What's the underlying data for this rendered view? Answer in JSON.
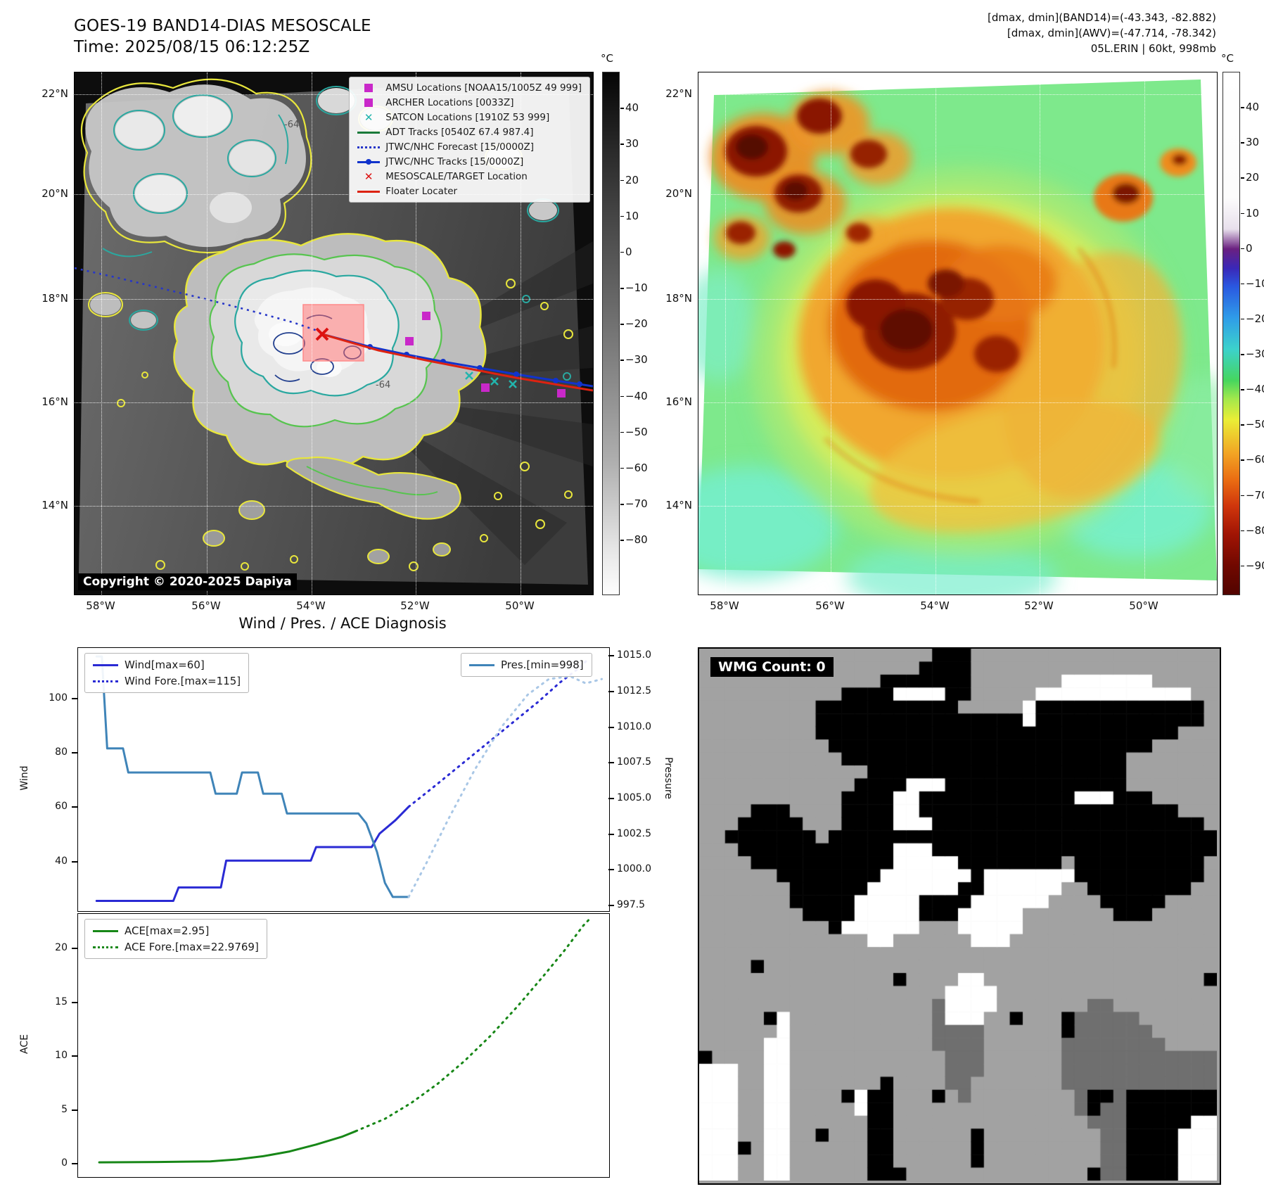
{
  "panel1": {
    "title": "GOES-19 BAND14-DIAS MESOSCALE",
    "time": "Time: 2025/08/15 06:12:25Z",
    "copyright": "Copyright © 2020-2025 Dapiya",
    "contour_label": "-64",
    "colorbar": {
      "unit": "°C",
      "ticks": [
        {
          "v": 40,
          "label": "40"
        },
        {
          "v": 30,
          "label": "30"
        },
        {
          "v": 20,
          "label": "20"
        },
        {
          "v": 10,
          "label": "10"
        },
        {
          "v": 0,
          "label": "0"
        },
        {
          "v": -10,
          "label": "−10"
        },
        {
          "v": -20,
          "label": "−20"
        },
        {
          "v": -30,
          "label": "−30"
        },
        {
          "v": -40,
          "label": "−40"
        },
        {
          "v": -50,
          "label": "−50"
        },
        {
          "v": -60,
          "label": "−60"
        },
        {
          "v": -70,
          "label": "−70"
        },
        {
          "v": -80,
          "label": "−80"
        }
      ]
    },
    "lat_labels": [
      "22°N",
      "20°N",
      "18°N",
      "16°N",
      "14°N"
    ],
    "lon_labels": [
      "58°W",
      "56°W",
      "54°W",
      "52°W",
      "50°W"
    ],
    "legend": [
      {
        "label": "AMSU Locations [NOAA15/1005Z 49 999]",
        "marker": "square",
        "color": "#c928c9"
      },
      {
        "label": "ARCHER Locations [0033Z]",
        "marker": "square",
        "color": "#c928c9"
      },
      {
        "label": "SATCON Locations [1910Z 53 999]",
        "marker": "x",
        "color": "#22b5ad"
      },
      {
        "label": "ADT Tracks [0540Z 67.4 987.4]",
        "marker": "line",
        "color": "#1a7a3a"
      },
      {
        "label": "JTWC/NHC Forecast [15/0000Z]",
        "marker": "dotted",
        "color": "#2636c8"
      },
      {
        "label": "JTWC/NHC Tracks [15/0000Z]",
        "marker": "line-dot",
        "color": "#1133cc"
      },
      {
        "label": "MESOSCALE/TARGET Location",
        "marker": "x",
        "color": "#dd1111"
      },
      {
        "label": "Floater Locater",
        "marker": "line",
        "color": "#dd2211"
      }
    ]
  },
  "panel2": {
    "header_lines": [
      "[dmax, dmin](BAND14)=(-43.343, -82.882)",
      "[dmax, dmin](AWV)=(-47.714, -78.342)",
      "05L.ERIN | 60kt, 998mb"
    ],
    "colorbar": {
      "unit": "°C",
      "ticks": [
        {
          "v": 40,
          "label": "40"
        },
        {
          "v": 30,
          "label": "30"
        },
        {
          "v": 20,
          "label": "20"
        },
        {
          "v": 10,
          "label": "10"
        },
        {
          "v": 0,
          "label": "0"
        },
        {
          "v": -10,
          "label": "−10"
        },
        {
          "v": -20,
          "label": "−20"
        },
        {
          "v": -30,
          "label": "−30"
        },
        {
          "v": -40,
          "label": "−40"
        },
        {
          "v": -50,
          "label": "−50"
        },
        {
          "v": -60,
          "label": "−60"
        },
        {
          "v": -70,
          "label": "−70"
        },
        {
          "v": -80,
          "label": "−80"
        },
        {
          "v": -90,
          "label": "−90"
        }
      ]
    },
    "lat_labels": [
      "22°N",
      "20°N",
      "18°N",
      "16°N",
      "14°N"
    ],
    "lon_labels": [
      "58°W",
      "56°W",
      "54°W",
      "52°W",
      "50°W"
    ]
  },
  "panel3": {
    "title": "Wind / Pres. / ACE Diagnosis",
    "ylabel_wind": "Wind",
    "ylabel_pressure": "Pressure",
    "ylabel_ace": "ACE",
    "legend_wind": [
      {
        "label": "Wind[max=60]",
        "style": "solid",
        "color": "#2a2ad4"
      },
      {
        "label": "Wind Fore.[max=115]",
        "style": "dotted",
        "color": "#2a2ad4"
      }
    ],
    "legend_pres": [
      {
        "label": "Pres.[min=998]",
        "style": "solid",
        "color": "#3f84b8"
      }
    ],
    "legend_ace": [
      {
        "label": "ACE[max=2.95]",
        "style": "solid",
        "color": "#178717"
      },
      {
        "label": "ACE Fore.[max=22.9769]",
        "style": "dotted",
        "color": "#178717"
      }
    ]
  },
  "panel4": {
    "wmg_label": "WMG Count: 0"
  },
  "chart_data": [
    {
      "type": "line",
      "title": "Wind / Pres. / ACE Diagnosis",
      "ylabel_left": "Wind",
      "ylabel_right": "Pressure",
      "ylim_left": [
        22,
        119
      ],
      "ylim_right": [
        997.15,
        1015.6
      ],
      "yticks_left": [
        {
          "v": 40,
          "label": "40"
        },
        {
          "v": 60,
          "label": "60"
        },
        {
          "v": 80,
          "label": "80"
        },
        {
          "v": 100,
          "label": "100"
        }
      ],
      "yticks_right": [
        {
          "v": 997.5,
          "label": "997.5"
        },
        {
          "v": 1000.0,
          "label": "1000.0"
        },
        {
          "v": 1002.5,
          "label": "1002.5"
        },
        {
          "v": 1005.0,
          "label": "1005.0"
        },
        {
          "v": 1007.5,
          "label": "1007.5"
        },
        {
          "v": 1010.0,
          "label": "1010.0"
        },
        {
          "v": 1012.5,
          "label": "1012.5"
        },
        {
          "v": 1015.0,
          "label": "1015.0"
        }
      ],
      "series": [
        {
          "name": "Wind[max=60]",
          "axis": "left",
          "style": "solid",
          "color": "#2a2ad4",
          "points": [
            [
              0.035,
              25
            ],
            [
              0.18,
              25
            ],
            [
              0.19,
              30
            ],
            [
              0.27,
              30
            ],
            [
              0.28,
              40
            ],
            [
              0.44,
              40
            ],
            [
              0.45,
              45
            ],
            [
              0.555,
              45
            ],
            [
              0.57,
              50
            ],
            [
              0.6,
              55
            ],
            [
              0.625,
              60
            ]
          ]
        },
        {
          "name": "Wind Fore.[max=115]",
          "axis": "left",
          "style": "dotted",
          "color": "#2a2ad4",
          "points": [
            [
              0.625,
              60
            ],
            [
              0.67,
              67
            ],
            [
              0.72,
              75
            ],
            [
              0.77,
              83
            ],
            [
              0.82,
              91
            ],
            [
              0.87,
              99
            ],
            [
              0.91,
              106
            ],
            [
              0.95,
              112
            ],
            [
              0.965,
              115
            ]
          ]
        },
        {
          "name": "Pres.[min=998]",
          "axis": "right",
          "style": "solid",
          "color": "#3f84b8",
          "points": [
            [
              0.035,
              1015
            ],
            [
              0.045,
              1015
            ],
            [
              0.055,
              1008.5
            ],
            [
              0.085,
              1008.5
            ],
            [
              0.095,
              1006.8
            ],
            [
              0.25,
              1006.8
            ],
            [
              0.26,
              1005.3
            ],
            [
              0.3,
              1005.3
            ],
            [
              0.31,
              1006.8
            ],
            [
              0.34,
              1006.8
            ],
            [
              0.35,
              1005.3
            ],
            [
              0.385,
              1005.3
            ],
            [
              0.395,
              1003.9
            ],
            [
              0.53,
              1003.9
            ],
            [
              0.545,
              1003.2
            ],
            [
              0.565,
              1001.2
            ],
            [
              0.58,
              999.0
            ],
            [
              0.595,
              998.0
            ],
            [
              0.625,
              998.0
            ]
          ]
        },
        {
          "name": "Pres. Fore.",
          "axis": "right",
          "style": "dotted",
          "color": "#a9c7e6",
          "points": [
            [
              0.625,
              998
            ],
            [
              0.66,
              1000.5
            ],
            [
              0.7,
              1003.5
            ],
            [
              0.75,
              1007
            ],
            [
              0.8,
              1010
            ],
            [
              0.85,
              1012.3
            ],
            [
              0.89,
              1013.4
            ],
            [
              0.93,
              1013.6
            ],
            [
              0.96,
              1013.1
            ],
            [
              0.99,
              1013.4
            ]
          ]
        }
      ]
    },
    {
      "type": "line",
      "ylabel_left": "ACE",
      "ylim_left": [
        -1.15,
        23.3
      ],
      "yticks_left": [
        {
          "v": 0,
          "label": "0"
        },
        {
          "v": 5,
          "label": "5"
        },
        {
          "v": 10,
          "label": "10"
        },
        {
          "v": 15,
          "label": "15"
        },
        {
          "v": 20,
          "label": "20"
        }
      ],
      "series": [
        {
          "name": "ACE[max=2.95]",
          "axis": "left",
          "style": "solid",
          "color": "#178717",
          "points": [
            [
              0.04,
              0.03
            ],
            [
              0.15,
              0.06
            ],
            [
              0.25,
              0.12
            ],
            [
              0.3,
              0.3
            ],
            [
              0.35,
              0.6
            ],
            [
              0.4,
              1.05
            ],
            [
              0.45,
              1.7
            ],
            [
              0.5,
              2.45
            ],
            [
              0.525,
              2.95
            ]
          ]
        },
        {
          "name": "ACE Fore.[max=22.9769]",
          "axis": "left",
          "style": "dotted",
          "color": "#178717",
          "points": [
            [
              0.525,
              2.95
            ],
            [
              0.58,
              4.1
            ],
            [
              0.63,
              5.6
            ],
            [
              0.68,
              7.4
            ],
            [
              0.73,
              9.5
            ],
            [
              0.78,
              11.9
            ],
            [
              0.83,
              14.6
            ],
            [
              0.88,
              17.5
            ],
            [
              0.92,
              19.9
            ],
            [
              0.955,
              22.2
            ],
            [
              0.97,
              22.98
            ]
          ]
        }
      ]
    }
  ]
}
